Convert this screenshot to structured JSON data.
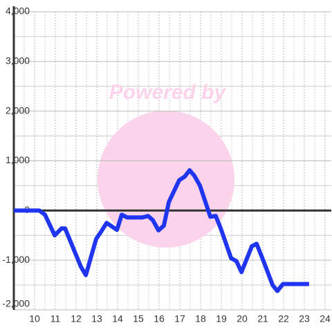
{
  "chart_data": {
    "type": "line",
    "watermark": "Powered by",
    "x": [
      9,
      10.23,
      10.5,
      10.97,
      11.3,
      11.47,
      12.23,
      12.47,
      12.97,
      13.2,
      13.47,
      13.97,
      14.2,
      14.47,
      15.2,
      15.47,
      15.7,
      15.97,
      16.23,
      16.47,
      16.97,
      17.23,
      17.47,
      17.7,
      17.97,
      18.47,
      18.73,
      18.97,
      19.47,
      19.73,
      19.97,
      20.47,
      20.7,
      20.97,
      21.47,
      21.7,
      21.97,
      23.23
    ],
    "series": [
      {
        "color": "#2035f0",
        "values": [
          0,
          0,
          -85,
          -500,
          -360,
          -360,
          -1130,
          -1300,
          -570,
          -430,
          -250,
          -390,
          -85,
          -140,
          -140,
          -110,
          -195,
          -400,
          -305,
          170,
          610,
          680,
          810,
          700,
          500,
          -125,
          -110,
          -360,
          -960,
          -1020,
          -1240,
          -720,
          -670,
          -950,
          -1500,
          -1620,
          -1480,
          -1480
        ]
      }
    ],
    "xlim": [
      9,
      24.3
    ],
    "xticks": [
      10,
      11,
      12,
      13,
      14,
      15,
      16,
      17,
      18,
      19,
      20,
      21,
      22,
      23,
      24
    ],
    "x_minor_ticks": [
      9.5,
      10.5,
      11.5,
      12.5,
      13.5,
      14.5,
      15.5,
      16.5,
      17.5,
      18.5,
      19.5,
      20.5,
      21.5,
      22.5,
      23.5
    ],
    "ylim": [
      -2000,
      4000
    ],
    "yticks": [
      {
        "value": -2000,
        "label": "-2,000"
      },
      {
        "value": -1000,
        "label": "-1,000"
      },
      0,
      {
        "value": 1000,
        "label": "1,000"
      },
      {
        "value": 2000,
        "label": "2,000"
      },
      {
        "value": 3000,
        "label": "3,000"
      },
      {
        "value": 4000,
        "label": "4,000"
      }
    ],
    "y_minor_ticks": [
      -1500,
      -500,
      500,
      1500,
      2500,
      3500
    ],
    "grid": true
  }
}
